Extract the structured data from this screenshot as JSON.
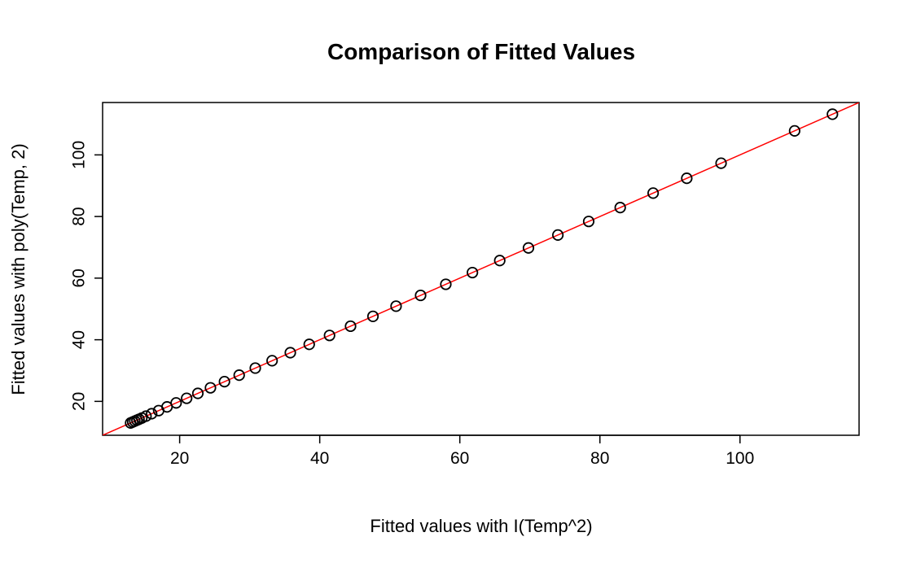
{
  "chart_data": {
    "type": "scatter",
    "title": "Comparison of Fitted Values",
    "xlabel": "Fitted values with I(Temp^2)",
    "ylabel": "Fitted values with poly(Temp, 2)",
    "xlim": [
      9,
      117
    ],
    "ylim": [
      9,
      117
    ],
    "xticks": [
      20,
      40,
      60,
      80,
      100
    ],
    "yticks": [
      20,
      40,
      60,
      80,
      100
    ],
    "grid": false,
    "legend": "none",
    "point_color": "#000000",
    "line_color": "#ff0000",
    "reference_line": {
      "intercept": 0,
      "slope": 1
    },
    "points": {
      "x": [
        13.0,
        13.3,
        13.6,
        13.9,
        14.2,
        14.6,
        15.2,
        16.0,
        17.0,
        18.2,
        19.5,
        21.0,
        22.6,
        24.4,
        26.4,
        28.5,
        30.8,
        33.2,
        35.8,
        38.5,
        41.4,
        44.4,
        47.6,
        50.9,
        54.4,
        58.0,
        61.8,
        65.7,
        69.8,
        74.0,
        78.4,
        82.9,
        87.6,
        92.4,
        97.3,
        107.8,
        113.2
      ],
      "y": [
        13.0,
        13.3,
        13.6,
        13.9,
        14.2,
        14.6,
        15.2,
        16.0,
        17.0,
        18.2,
        19.5,
        21.0,
        22.6,
        24.4,
        26.4,
        28.5,
        30.8,
        33.2,
        35.8,
        38.5,
        41.4,
        44.4,
        47.6,
        50.9,
        54.4,
        58.0,
        61.8,
        65.7,
        69.8,
        74.0,
        78.4,
        82.9,
        87.6,
        92.4,
        97.3,
        107.8,
        113.2
      ]
    }
  }
}
